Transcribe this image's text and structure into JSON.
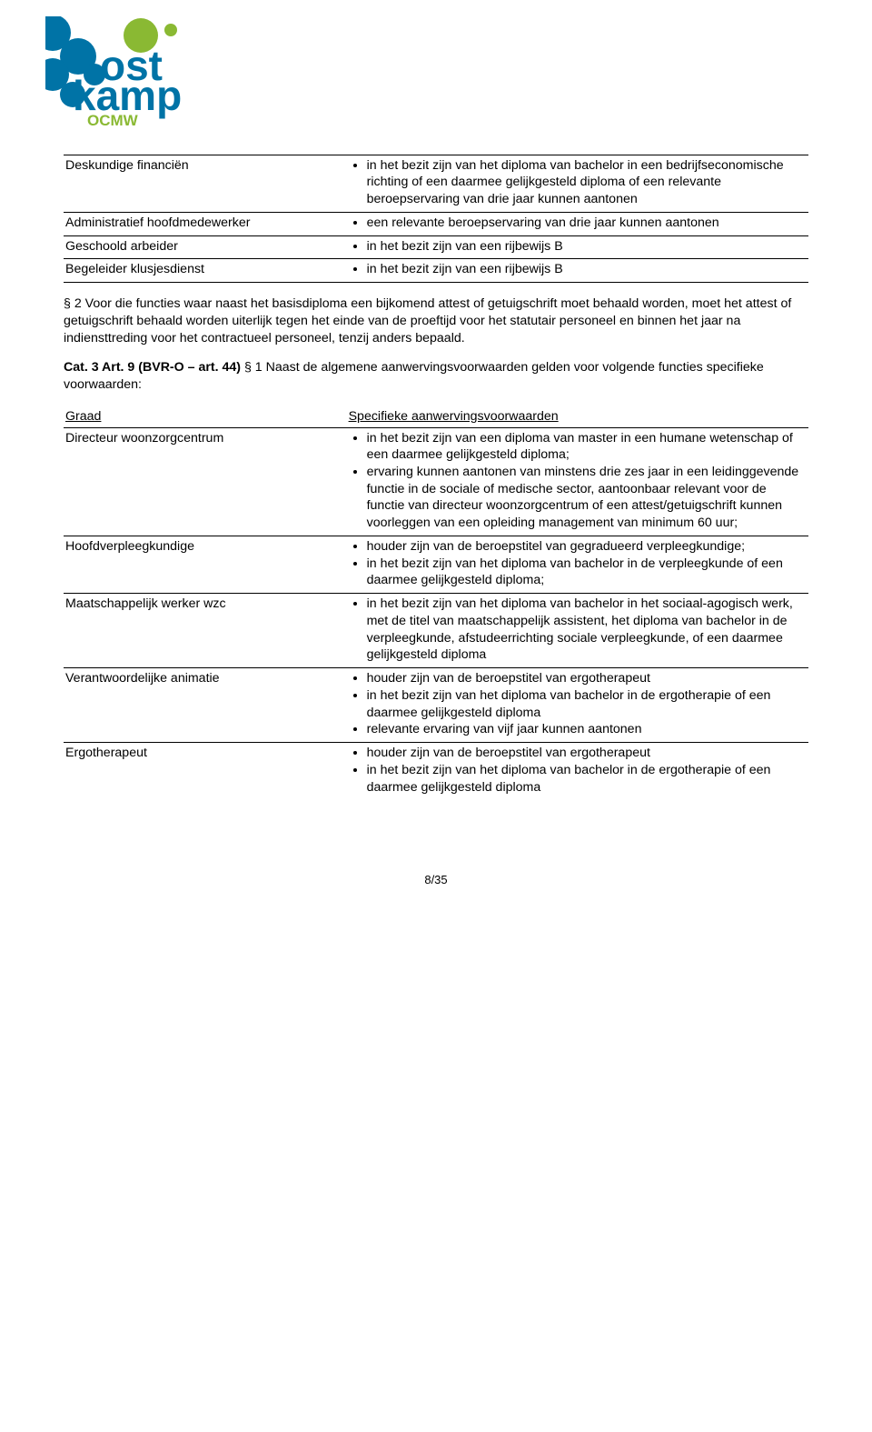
{
  "logo": {
    "text_top": "ost",
    "text_bottom": "kamp",
    "subtitle": "OCMW",
    "blue": "#0073a6",
    "green": "#8ab933"
  },
  "table1": {
    "rows": [
      {
        "label": "Deskundige financiën",
        "items": [
          "in het bezit zijn van het diploma van bachelor in een bedrijfseconomische richting of een daarmee gelijkgesteld diploma of een relevante beroepservaring van drie jaar kunnen aantonen"
        ]
      },
      {
        "label": "Administratief hoofdmedewerker",
        "items": [
          "een relevante beroepservaring van  drie jaar kunnen aantonen"
        ]
      },
      {
        "label": "Geschoold arbeider",
        "items": [
          "in het bezit zijn van een rijbewijs B"
        ]
      },
      {
        "label": "Begeleider klusjesdienst",
        "items": [
          "in het bezit zijn van een rijbewijs B"
        ]
      }
    ]
  },
  "para1": "§ 2 Voor die functies waar naast het basisdiploma een bijkomend attest of getuigschrift moet behaald worden, moet het attest of getuigschrift behaald worden uiterlijk tegen het einde van de proeftijd voor het statutair personeel en binnen het jaar na indiensttreding voor het contractueel personeel, tenzij anders bepaald.",
  "para2_bold": "Cat. 3 Art. 9 (BVR-O – art. 44)",
  "para2_rest": " § 1 Naast de algemene aanwervingsvoorwaarden gelden voor volgende functies specifieke voorwaarden:",
  "table2": {
    "header_left": "Graad",
    "header_right": "Specifieke aanwervingsvoorwaarden",
    "rows": [
      {
        "label": "Directeur woonzorgcentrum",
        "items": [
          "in het bezit zijn van een diploma van master in een humane wetenschap of een daarmee gelijkgesteld diploma;",
          "ervaring kunnen aantonen van minstens drie zes jaar in een leidinggevende functie in de sociale of medische sector, aantoonbaar relevant voor de functie van directeur woonzorgcentrum of een attest/getuigschrift kunnen voorleggen van een opleiding management van minimum 60 uur;"
        ]
      },
      {
        "label": "Hoofdverpleegkundige",
        "items": [
          "houder zijn van de beroepstitel van gegradueerd verpleegkundige;",
          "in het bezit zijn van het diploma van bachelor in de verpleegkunde of een daarmee gelijkgesteld diploma;"
        ]
      },
      {
        "label": "Maatschappelijk werker wzc",
        "items": [
          "in het bezit zijn van het diploma van bachelor in het sociaal-agogisch werk, met de titel van maatschappelijk assistent, het diploma van bachelor in de verpleegkunde, afstudeerrichting sociale verpleegkunde, of een daarmee gelijkgesteld diploma"
        ]
      },
      {
        "label": "Verantwoordelijke animatie",
        "items": [
          "houder zijn van de beroepstitel van ergotherapeut",
          "in het bezit zijn van het diploma van bachelor in de ergotherapie of een daarmee gelijkgesteld diploma",
          "relevante ervaring van vijf jaar kunnen aantonen"
        ]
      },
      {
        "label": "Ergotherapeut",
        "items": [
          "houder zijn van de beroepstitel van ergotherapeut",
          "in het bezit zijn van het diploma van bachelor in de ergotherapie of een daarmee gelijkgesteld diploma"
        ]
      }
    ]
  },
  "pagenum": "8/35"
}
